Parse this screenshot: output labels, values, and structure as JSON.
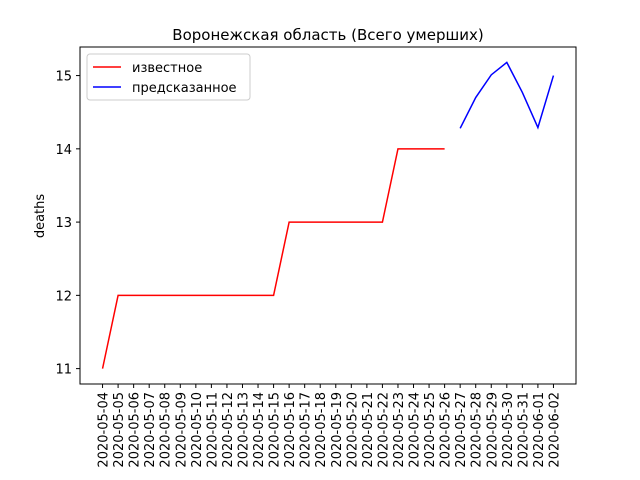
{
  "chart_data": {
    "type": "line",
    "title": "Воронежская область (Всего умерших)",
    "y_label": "deaths",
    "categories": [
      "2020-05-04",
      "2020-05-05",
      "2020-05-06",
      "2020-05-07",
      "2020-05-08",
      "2020-05-09",
      "2020-05-10",
      "2020-05-11",
      "2020-05-12",
      "2020-05-13",
      "2020-05-14",
      "2020-05-15",
      "2020-05-16",
      "2020-05-17",
      "2020-05-18",
      "2020-05-19",
      "2020-05-20",
      "2020-05-21",
      "2020-05-22",
      "2020-05-23",
      "2020-05-24",
      "2020-05-25",
      "2020-05-26",
      "2020-05-27",
      "2020-05-28",
      "2020-05-29",
      "2020-05-30",
      "2020-05-31",
      "2020-06-01",
      "2020-06-02"
    ],
    "series": [
      {
        "name": "известное",
        "color": "#ff0000",
        "values": [
          11,
          12,
          12,
          12,
          12,
          12,
          12,
          12,
          12,
          12,
          12,
          12,
          13,
          13,
          13,
          13,
          13,
          13,
          13,
          14,
          14,
          14,
          14,
          null,
          null,
          null,
          null,
          null,
          null,
          null
        ]
      },
      {
        "name": "предсказанное",
        "color": "#0000ff",
        "values": [
          null,
          null,
          null,
          null,
          null,
          null,
          null,
          null,
          null,
          null,
          null,
          null,
          null,
          null,
          null,
          null,
          null,
          null,
          null,
          null,
          null,
          null,
          null,
          14.28,
          14.7,
          15.01,
          15.18,
          14.77,
          14.29,
          15.0
        ]
      }
    ],
    "ylim": [
      10.79,
      15.39
    ],
    "yticks": [
      11,
      12,
      13,
      14,
      15
    ],
    "legend": "upper left",
    "grid": false
  }
}
